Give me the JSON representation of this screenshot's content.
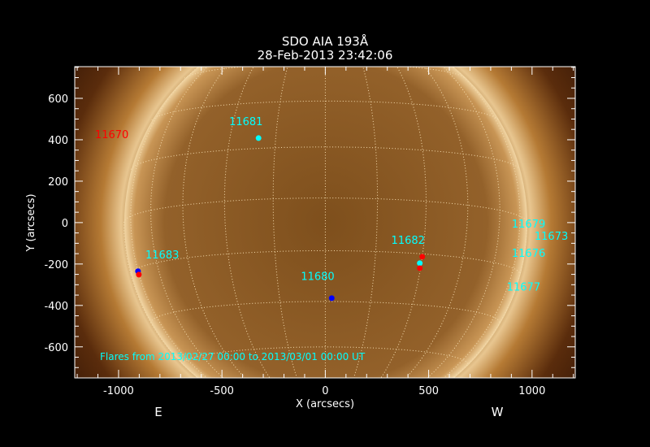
{
  "chart_data": {
    "type": "scatter",
    "title": "SDO AIA 193Å",
    "subtitle": "28-Feb-2013 23:42:06",
    "xlabel": "X (arcsecs)",
    "ylabel": "Y (arcsecs)",
    "xlim": [
      -1212,
      1209
    ],
    "ylim": [
      -750,
      753
    ],
    "xticks": [
      -1000,
      -500,
      0,
      500,
      1000
    ],
    "yticks": [
      -600,
      -400,
      -200,
      0,
      200,
      400,
      600
    ],
    "grid": "heliographic lat/lon every 15°",
    "solar_radius_arcsec": 975,
    "direction_labels": {
      "east": "E",
      "west": "W"
    },
    "annotation": "Flares from 2013/02/27 00:00 to 2013/03/01 00:00 UT",
    "colors": {
      "label": "#00ffff",
      "label_off_disk": "#ff0000",
      "axes": "#ffffff",
      "grid": "#f5dcae"
    },
    "ar_labels": [
      {
        "text": "11670",
        "x": -1114,
        "y": 408,
        "color": "#ff0000"
      },
      {
        "text": "11681",
        "x": -465,
        "y": 470,
        "color": "#00ffff"
      },
      {
        "text": "11683",
        "x": -870,
        "y": -173,
        "color": "#00ffff"
      },
      {
        "text": "11680",
        "x": -118,
        "y": -278,
        "color": "#00ffff"
      },
      {
        "text": "11682",
        "x": 319,
        "y": -102,
        "color": "#00ffff"
      },
      {
        "text": "11679",
        "x": 902,
        "y": -24,
        "color": "#00ffff"
      },
      {
        "text": "11673",
        "x": 1012,
        "y": -82,
        "color": "#00ffff"
      },
      {
        "text": "11676",
        "x": 902,
        "y": -165,
        "color": "#00ffff"
      },
      {
        "text": "11677",
        "x": 878,
        "y": -329,
        "color": "#00ffff"
      }
    ],
    "flares": [
      {
        "x": -906,
        "y": -235,
        "color": "#0000ff"
      },
      {
        "x": -902,
        "y": -251,
        "color": "#ff0000"
      },
      {
        "x": -323,
        "y": 408,
        "color": "#00ffff"
      },
      {
        "x": 31,
        "y": -365,
        "color": "#0000ff"
      },
      {
        "x": 469,
        "y": -165,
        "color": "#ff0000"
      },
      {
        "x": 457,
        "y": -196,
        "color": "#00ffff"
      },
      {
        "x": 457,
        "y": -220,
        "color": "#ff0000"
      }
    ]
  }
}
